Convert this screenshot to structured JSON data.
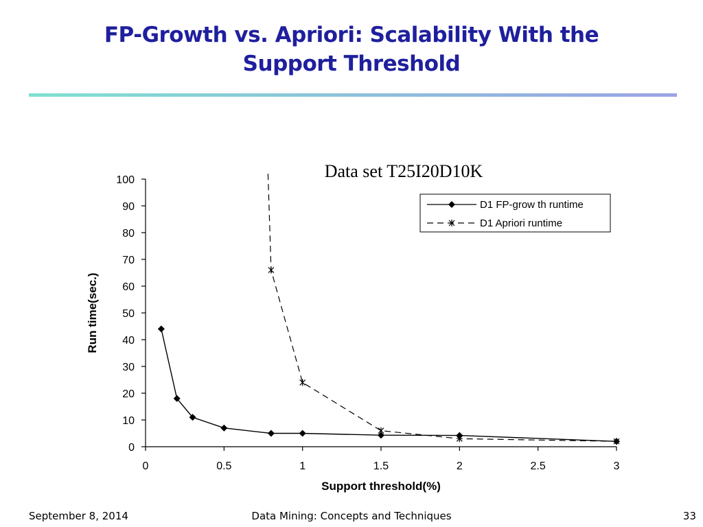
{
  "slide": {
    "title_line1": "FP-Growth vs. Apriori: Scalability With the",
    "title_line2": "Support Threshold",
    "accent_color": "#1f1f9e",
    "rule_colors": [
      "#7fe0d0",
      "#9aa3e6"
    ]
  },
  "chart_data": {
    "type": "line",
    "title": "Data set T25I20D10K",
    "xlabel": "Support threshold(%)",
    "ylabel": "Run time(sec.)",
    "xlim": [
      0,
      3
    ],
    "ylim": [
      0,
      100
    ],
    "xticks": [
      0,
      0.5,
      1,
      1.5,
      2,
      2.5,
      3
    ],
    "yticks": [
      0,
      10,
      20,
      30,
      40,
      50,
      60,
      70,
      80,
      90,
      100
    ],
    "grid": false,
    "legend_position": "top-right",
    "series": [
      {
        "name": "D1 FP-grow th runtime",
        "style": "solid",
        "marker": "diamond",
        "color": "#000000",
        "x": [
          0.1,
          0.2,
          0.3,
          0.5,
          0.8,
          1,
          1.5,
          2,
          3
        ],
        "y": [
          44,
          18,
          11,
          7,
          5,
          5,
          4.3,
          4.2,
          2
        ]
      },
      {
        "name": "D1 Apriori runtime",
        "style": "dashed",
        "marker": "star",
        "color": "#000000",
        "x": [
          0.78,
          0.8,
          1,
          1.5,
          2,
          3
        ],
        "y": [
          102,
          66,
          24,
          6,
          3,
          2
        ]
      }
    ]
  },
  "footer": {
    "date": "September 8, 2014",
    "center": "Data Mining: Concepts and Techniques",
    "page": "33"
  }
}
